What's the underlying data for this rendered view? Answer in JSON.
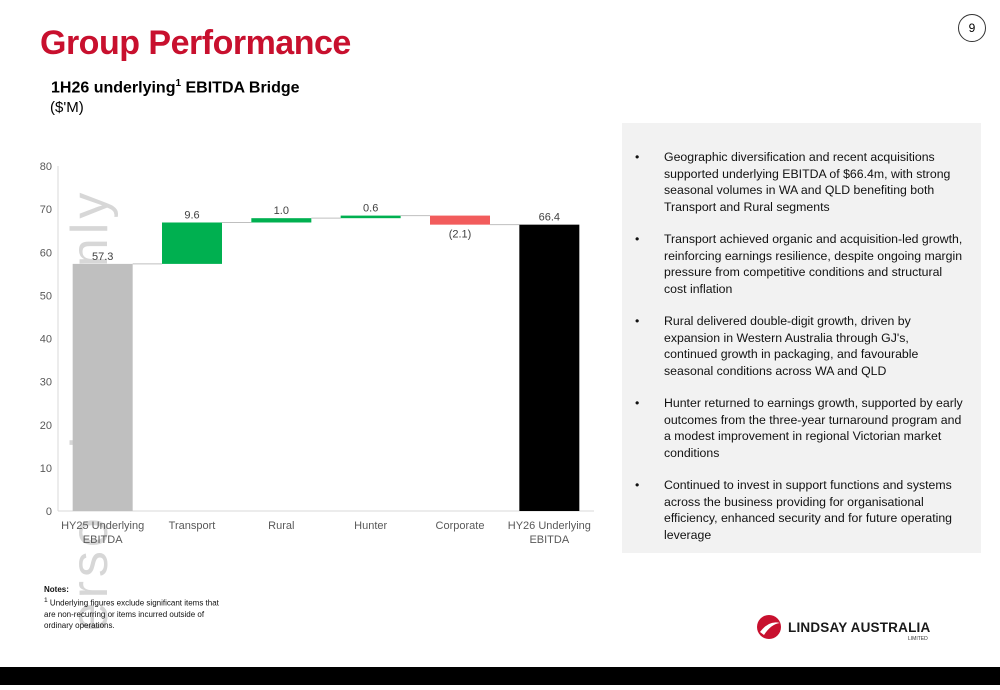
{
  "header": {
    "title": "Group Performance",
    "page_number": "9",
    "subtitle": "1H26 underlying",
    "subtitle_sup": "1",
    "subtitle_rest": " EBITDA Bridge",
    "units": "($'M)"
  },
  "watermark": "ersonal use only",
  "chart_data": {
    "type": "waterfall",
    "categories": [
      "HY25 Underlying EBITDA",
      "Transport",
      "Rural",
      "Hunter",
      "Corporate",
      "HY26 Underlying EBITDA"
    ],
    "values": [
      57.3,
      9.6,
      1.0,
      0.6,
      -2.1,
      66.4
    ],
    "kinds": [
      "total",
      "delta",
      "delta",
      "delta",
      "delta",
      "total"
    ],
    "labels": [
      "57.3",
      "9.6",
      "1.0",
      "0.6",
      "(2.1)",
      "66.4"
    ],
    "yticks": [
      0,
      10,
      20,
      30,
      40,
      50,
      60,
      70,
      80
    ],
    "ylim": [
      0,
      80
    ],
    "colors": {
      "start": "#bfbfbf",
      "increase": "#00b050",
      "decrease": "#f25c5c",
      "end": "#000000"
    }
  },
  "commentary": [
    "Geographic diversification and recent acquisitions supported underlying EBITDA of $66.4m, with strong seasonal volumes in WA and QLD benefiting both Transport and Rural segments",
    "Transport achieved organic and acquisition-led growth, reinforcing earnings resilience, despite ongoing margin pressure from competitive conditions and structural cost inflation",
    "Rural delivered double-digit growth, driven by expansion in Western Australia through GJ's, continued growth in packaging, and favourable seasonal conditions across WA and QLD",
    "Hunter returned to earnings growth, supported by early outcomes from the three-year turnaround program and a modest improvement in regional Victorian market conditions",
    "Continued to invest in support functions and systems across the business providing for organisational efficiency, enhanced security and for future operating leverage"
  ],
  "notes": {
    "heading": "Notes:",
    "sup": "1",
    "text": " Underlying figures exclude significant items that are non-recurring or items incurred outside of ordinary operations."
  },
  "logo": {
    "name": "LINDSAY AUSTRALIA",
    "sub": "LIMITED"
  },
  "brand_color": "#c8102e"
}
